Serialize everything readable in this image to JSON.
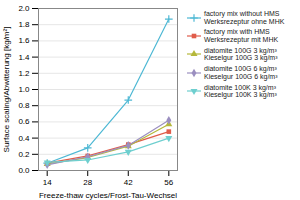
{
  "chart_data": {
    "type": "line",
    "xlabel": "Freeze-thaw cycles/Frost-Tau-Wechsel",
    "ylabel": "Surface scaling/Abwitterung [kg/m²]",
    "x": [
      14,
      28,
      42,
      56
    ],
    "series": [
      {
        "name": "factory mix without HMS\nWerksrezeptur ohne MHK",
        "color": "#4db8d4",
        "marker": "plus",
        "values": [
          0.09,
          0.28,
          0.87,
          1.87
        ]
      },
      {
        "name": "factory mix with HMS\nWerksrezeptur mit MHK",
        "color": "#e05c4a",
        "marker": "square",
        "values": [
          0.09,
          0.18,
          0.32,
          0.48
        ]
      },
      {
        "name": "diatomite 100G 3 kg/m³\nKieselgur 100G 3 kg/m³",
        "color": "#b5b83a",
        "marker": "triangle",
        "values": [
          0.08,
          0.16,
          0.3,
          0.57
        ]
      },
      {
        "name": "diatomite 100G 6 kg/m³\nKieselgur 100G 6 kg/m³",
        "color": "#9b8fc0",
        "marker": "diamond",
        "values": [
          0.07,
          0.17,
          0.31,
          0.62
        ]
      },
      {
        "name": "diatomite 100K 3 kg/m³\nKieselgur 100K 3 kg/m³",
        "color": "#6ecfcf",
        "marker": "triangle-down",
        "values": [
          0.1,
          0.13,
          0.23,
          0.4
        ]
      }
    ],
    "xlim": [
      11,
      59
    ],
    "xticks": [
      14,
      28,
      42,
      56
    ],
    "ylim": [
      0.0,
      2.0
    ],
    "yticks": [
      {
        "value": 0.0,
        "label": "0.0"
      },
      0.2,
      0.4,
      0.6,
      0.8,
      {
        "value": 1.0,
        "label": "1.0"
      },
      1.2,
      1.4,
      1.6,
      1.8,
      {
        "value": 2.0,
        "label": "2.0"
      }
    ],
    "grid": true,
    "legend": "right"
  }
}
